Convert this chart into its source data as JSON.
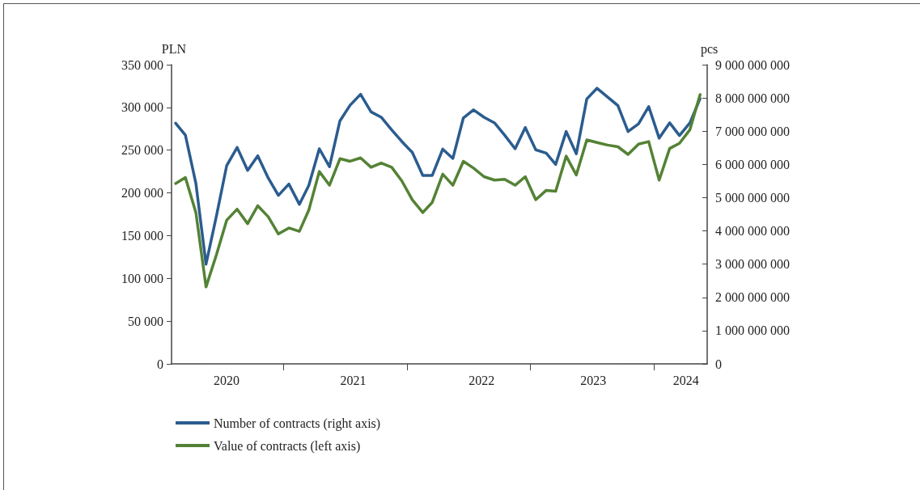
{
  "chart_data": {
    "type": "line",
    "xlabel": null,
    "ylabel": "PLN",
    "y2label": "pcs",
    "x": [
      "2020-02",
      "2020-03",
      "2020-04",
      "2020-05",
      "2020-06",
      "2020-07",
      "2020-08",
      "2020-09",
      "2020-10",
      "2020-11",
      "2020-12",
      "2021-01",
      "2021-02",
      "2021-03",
      "2021-04",
      "2021-05",
      "2021-06",
      "2021-07",
      "2021-08",
      "2021-09",
      "2021-10",
      "2021-11",
      "2021-12",
      "2022-01",
      "2022-02",
      "2022-03",
      "2022-04",
      "2022-05",
      "2022-06",
      "2022-07",
      "2022-08",
      "2022-09",
      "2022-10",
      "2022-11",
      "2022-12",
      "2023-01",
      "2023-02",
      "2023-03",
      "2023-04",
      "2023-05",
      "2023-06",
      "2023-07",
      "2023-08",
      "2023-09",
      "2023-10",
      "2023-11",
      "2023-12",
      "2024-01",
      "2024-02",
      "2024-03",
      "2024-04",
      "2024-05"
    ],
    "series": [
      {
        "name": "Number of contracts (right axis)",
        "color": "#2b5c8f",
        "axis": "y2",
        "values": [
          7240000000,
          6880000000,
          5430000000,
          3000000000,
          4460000000,
          5960000000,
          6510000000,
          5820000000,
          6260000000,
          5590000000,
          5070000000,
          5410000000,
          4800000000,
          5370000000,
          6470000000,
          5930000000,
          7310000000,
          7780000000,
          8110000000,
          7580000000,
          7420000000,
          7040000000,
          6690000000,
          6360000000,
          5670000000,
          5670000000,
          6460000000,
          6180000000,
          7400000000,
          7640000000,
          7420000000,
          7250000000,
          6880000000,
          6470000000,
          7110000000,
          6440000000,
          6340000000,
          6000000000,
          6990000000,
          6320000000,
          7970000000,
          8290000000,
          8030000000,
          7770000000,
          6990000000,
          7220000000,
          7740000000,
          6790000000,
          7250000000,
          6870000000,
          7250000000,
          7980000000
        ]
      },
      {
        "name": "Value of contracts (left axis)",
        "color": "#548235",
        "values": [
          211000,
          218000,
          177000,
          90000,
          128000,
          168000,
          181000,
          164000,
          185000,
          172000,
          152000,
          159000,
          155000,
          180000,
          225000,
          209000,
          240000,
          237000,
          241000,
          230000,
          235000,
          230000,
          214000,
          192000,
          177000,
          189000,
          222000,
          209000,
          237000,
          229000,
          219000,
          215000,
          216000,
          209000,
          219000,
          192000,
          203000,
          202000,
          243000,
          221000,
          262000,
          259000,
          256000,
          254000,
          245000,
          257000,
          260000,
          215000,
          252000,
          258000,
          274000,
          315000
        ]
      }
    ],
    "xlim": [
      "2020-01-20",
      "2024-05-22"
    ],
    "xticks": [
      {
        "value": "2020-07",
        "label": "2020"
      },
      {
        "value": "2020-12-16",
        "label": null
      },
      {
        "value": "2021-07-10",
        "label": "2021"
      },
      {
        "value": "2021-12-16",
        "label": null
      },
      {
        "value": "2022-07-25",
        "label": "2022"
      },
      {
        "value": "2022-12-16",
        "label": null
      },
      {
        "value": "2023-06-20",
        "label": "2023"
      },
      {
        "value": "2023-12-16",
        "label": null
      },
      {
        "value": "2024-03-20",
        "label": "2024"
      }
    ],
    "ylim": [
      0,
      350000
    ],
    "yticks": [
      0,
      {
        "value": 50000,
        "label": "50 000"
      },
      {
        "value": 100000,
        "label": "100 000"
      },
      {
        "value": 150000,
        "label": "150 000"
      },
      {
        "value": 200000,
        "label": "200 000"
      },
      {
        "value": 250000,
        "label": "250 000"
      },
      {
        "value": 300000,
        "label": "300 000"
      },
      {
        "value": 350000,
        "label": "350 000"
      }
    ],
    "y2lim": [
      0,
      9000000000
    ],
    "y2ticks": [
      0,
      {
        "value": 1000000000,
        "label": "1 000 000 000"
      },
      {
        "value": 2000000000,
        "label": "2 000 000 000"
      },
      {
        "value": 3000000000,
        "label": "3 000 000 000"
      },
      {
        "value": 4000000000,
        "label": "4 000 000 000"
      },
      {
        "value": 5000000000,
        "label": "5 000 000 000"
      },
      {
        "value": 6000000000,
        "label": "6 000 000 000"
      },
      {
        "value": 7000000000,
        "label": "7 000 000 000"
      },
      {
        "value": 8000000000,
        "label": "8 000 000 000"
      },
      {
        "value": 9000000000,
        "label": "9 000 000 000"
      }
    ],
    "grid": false,
    "legend": "bottom left",
    "marker": "none",
    "line_style": "solid"
  }
}
